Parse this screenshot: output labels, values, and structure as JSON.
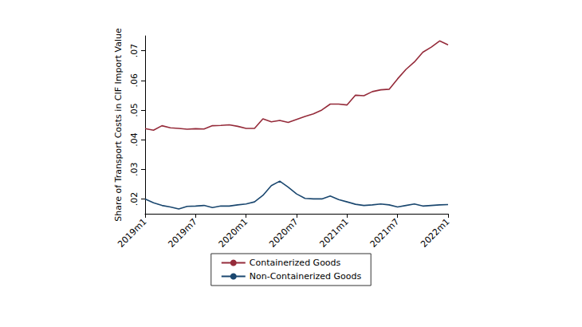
{
  "chart_data": {
    "type": "line",
    "y_label": "Share of Transport Costs in CIF Import Value",
    "categories": [
      "2019m1",
      null,
      null,
      null,
      null,
      null,
      "2019m7",
      null,
      null,
      null,
      null,
      null,
      "2020m1",
      null,
      null,
      null,
      null,
      null,
      "2020m7",
      null,
      null,
      null,
      null,
      null,
      "2021m1",
      null,
      null,
      null,
      null,
      null,
      "2021m7",
      null,
      null,
      null,
      null,
      null,
      "2022m1"
    ],
    "series": [
      {
        "name": "Containerized Goods",
        "color": "#952b3a",
        "values": [
          0.0437,
          0.0432,
          0.0447,
          0.044,
          0.0438,
          0.0435,
          0.0437,
          0.0436,
          0.0447,
          0.0448,
          0.045,
          0.0445,
          0.0438,
          0.0438,
          0.047,
          0.046,
          0.0465,
          0.0458,
          0.0468,
          0.0478,
          0.0487,
          0.05,
          0.052,
          0.052,
          0.0517,
          0.055,
          0.0548,
          0.0562,
          0.0568,
          0.057,
          0.0605,
          0.0637,
          0.0662,
          0.0695,
          0.0712,
          0.0733,
          0.072
        ]
      },
      {
        "name": "Non-Containerized Goods",
        "color": "#1a476f",
        "values": [
          0.02,
          0.0187,
          0.0178,
          0.0173,
          0.0166,
          0.0175,
          0.0176,
          0.0178,
          0.0171,
          0.0176,
          0.0176,
          0.018,
          0.0183,
          0.019,
          0.0212,
          0.0245,
          0.026,
          0.024,
          0.0217,
          0.0202,
          0.02,
          0.02,
          0.021,
          0.0198,
          0.019,
          0.0182,
          0.0178,
          0.018,
          0.0183,
          0.018,
          0.0173,
          0.0178,
          0.0183,
          0.0176,
          0.0178,
          0.018,
          0.0181
        ]
      }
    ],
    "ylim": [
      0.015,
      0.075
    ],
    "yticks": [
      {
        "value": 0.02,
        "label": ".02"
      },
      {
        "value": 0.03,
        "label": ".03"
      },
      {
        "value": 0.04,
        "label": ".04"
      },
      {
        "value": 0.05,
        "label": ".05"
      },
      {
        "value": 0.06,
        "label": ".06"
      },
      {
        "value": 0.07,
        "label": ".07"
      }
    ],
    "grid": false,
    "legend": "bottom"
  }
}
